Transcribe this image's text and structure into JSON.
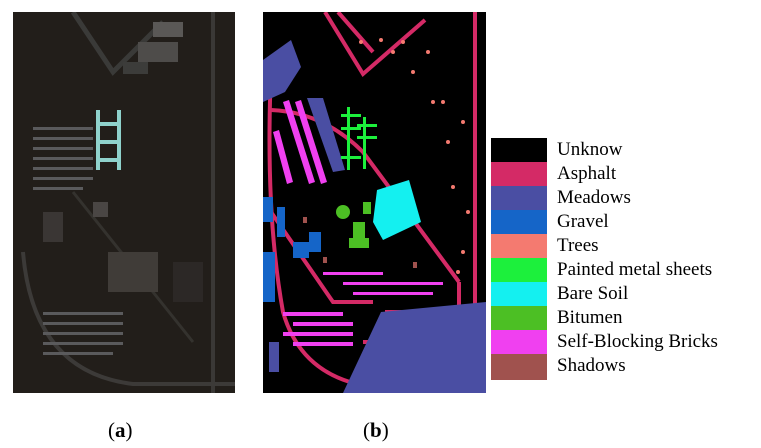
{
  "captions": {
    "a": {
      "open": "(",
      "letter": "a",
      "close": ")"
    },
    "b": {
      "open": "(",
      "letter": "b",
      "close": ")"
    }
  },
  "legend": [
    {
      "label": "Unknow",
      "color": "#000000"
    },
    {
      "label": "Asphalt",
      "color": "#d42a66"
    },
    {
      "label": "Meadows",
      "color": "#4a4ea3"
    },
    {
      "label": "Gravel",
      "color": "#1565c8"
    },
    {
      "label": "Trees",
      "color": "#f47a70"
    },
    {
      "label": "Painted metal sheets",
      "color": "#1cf03c"
    },
    {
      "label": "Bare Soil",
      "color": "#14f0f0"
    },
    {
      "label": "Bitumen",
      "color": "#4cbf24"
    },
    {
      "label": "Self-Blocking Bricks",
      "color": "#f040f0"
    },
    {
      "label": "Shadows",
      "color": "#a0524e"
    }
  ]
}
